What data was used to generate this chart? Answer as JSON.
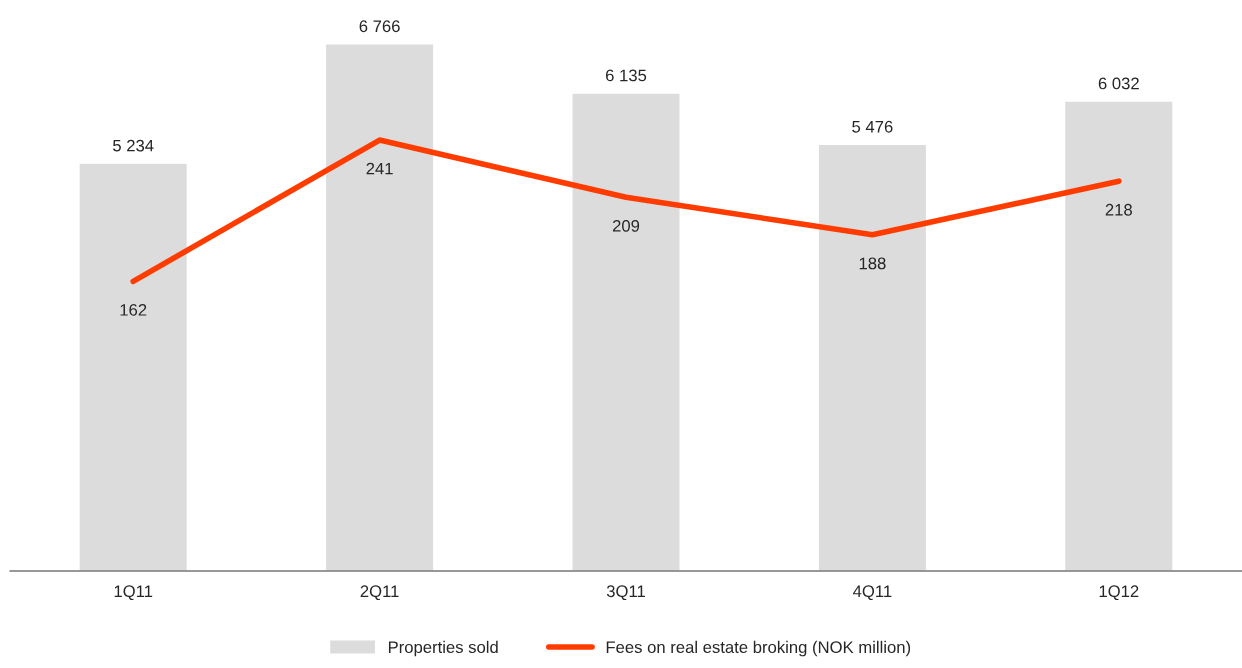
{
  "chart_data": {
    "type": "bar",
    "categories": [
      "1Q11",
      "2Q11",
      "3Q11",
      "4Q11",
      "1Q12"
    ],
    "series": [
      {
        "name": "Properties sold",
        "color": "#dcdcdc",
        "values": [
          5234,
          6766,
          6135,
          5476,
          6032
        ],
        "value_labels": [
          "5 234",
          "6 766",
          "6 135",
          "5 476",
          "6 032"
        ]
      },
      {
        "name": "Fees on real estate broking (NOK million)",
        "type": "line",
        "axis": "y2",
        "color": "#ff3c00",
        "values": [
          162,
          241,
          209,
          188,
          218
        ],
        "value_labels": [
          "162",
          "241",
          "209",
          "188",
          "218"
        ]
      }
    ],
    "legend": "bottom",
    "grid": false,
    "marker": "none",
    "line_style": "solid",
    "tick_labels": "x"
  }
}
